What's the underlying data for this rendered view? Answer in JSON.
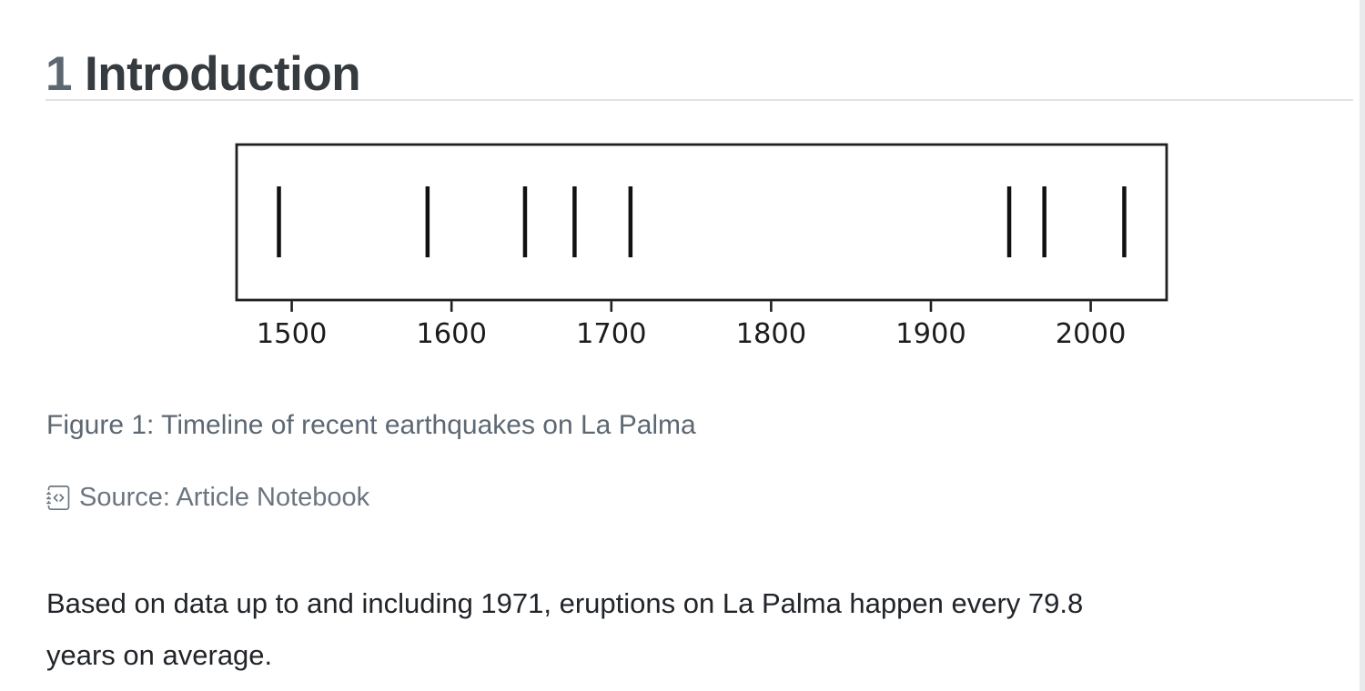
{
  "page": {
    "background": "#ffffff",
    "scrollbar_color": "#e9eaec"
  },
  "header": {
    "section_number": "1",
    "title": "Introduction"
  },
  "chart_data": {
    "type": "event-timeline",
    "events": [
      1492,
      1585,
      1646,
      1677,
      1712,
      1949,
      1971,
      2021
    ],
    "x_ticks": [
      1500,
      1600,
      1700,
      1800,
      1900,
      2000
    ],
    "x_tick_labels": [
      "1500",
      "1600",
      "1700",
      "1800",
      "1900",
      "2000"
    ],
    "xlim": [
      1465.5,
      2047.5
    ],
    "grid": false,
    "legend": false,
    "marker_color": "#111111",
    "frame_color": "#1f1f1f",
    "tick_label_color": "#1c1c1c"
  },
  "figure": {
    "caption": "Figure 1: Timeline of recent earthquakes on La Palma",
    "source_icon": "journal-code-icon",
    "source_label": "Source: Article Notebook"
  },
  "paragraph": {
    "text": "Based on data up to and including 1971, eruptions on La Palma happen every 79.8 years on average.",
    "lines": [
      "Based on data up to and including 1971, eruptions on La Palma happen every 79.8",
      "years on average."
    ]
  },
  "colors": {
    "section_number": "#5c6772",
    "heading": "#363b3f",
    "caption": "#5c6873",
    "source": "#6b7580",
    "body": "#212529",
    "divider": "#dee2e6"
  }
}
